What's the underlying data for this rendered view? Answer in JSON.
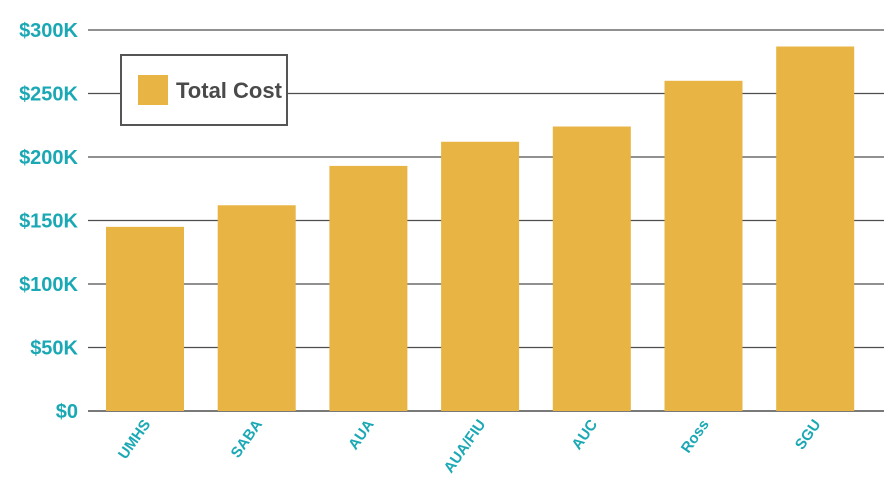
{
  "chart_data": {
    "type": "bar",
    "categories": [
      "UMHS",
      "SABA",
      "AUA",
      "AUA/FIU",
      "AUC",
      "Ross",
      "SGU"
    ],
    "series": [
      {
        "name": "Total Cost",
        "values": [
          145000,
          162000,
          193000,
          212000,
          224000,
          260000,
          287000
        ]
      }
    ],
    "yticks": [
      {
        "value": 0,
        "label": "$0"
      },
      {
        "value": 50000,
        "label": "$50K"
      },
      {
        "value": 100000,
        "label": "$100K"
      },
      {
        "value": 150000,
        "label": "$150K"
      },
      {
        "value": 200000,
        "label": "$200K"
      },
      {
        "value": 250000,
        "label": "$250K"
      },
      {
        "value": 300000,
        "label": "$300K"
      }
    ],
    "ylim": [
      0,
      300000
    ],
    "grid": true,
    "legend_position": "top-left",
    "colors": {
      "bar": "#E8B444",
      "axis_text": "#1BA8B5",
      "grid": "#4D4D4D",
      "legend_text": "#4A4A4A",
      "legend_border": "#555555"
    }
  }
}
